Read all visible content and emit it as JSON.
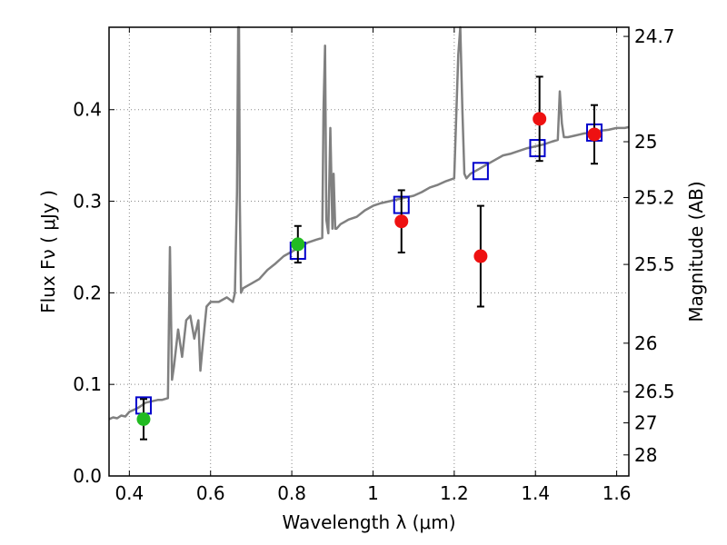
{
  "chart_data": {
    "type": "scatter",
    "xlabel": "Wavelength  λ (μm)",
    "ylabel": "Flux  Fν  ( μJy )",
    "y2label": "Magnitude (AB)",
    "xlim": [
      0.35,
      1.63
    ],
    "ylim": [
      0.0,
      0.49
    ],
    "x_ticks": [
      0.4,
      0.6,
      0.8,
      1.0,
      1.2,
      1.4,
      1.6
    ],
    "x_tick_labels": [
      "0.4",
      "0.6",
      "0.8",
      "1",
      "1.2",
      "1.4",
      "1.6"
    ],
    "y_ticks": [
      0.0,
      0.1,
      0.2,
      0.3,
      0.4
    ],
    "y_tick_labels": [
      "0.0",
      "0.1",
      "0.2",
      "0.3",
      "0.4"
    ],
    "y2_ticks": [
      {
        "label": "24.7",
        "flux": 0.48
      },
      {
        "label": "25",
        "flux": 0.365
      },
      {
        "label": "25.2",
        "flux": 0.304
      },
      {
        "label": "25.5",
        "flux": 0.231
      },
      {
        "label": "26",
        "flux": 0.145
      },
      {
        "label": "26.5",
        "flux": 0.092
      },
      {
        "label": "27",
        "flux": 0.058
      },
      {
        "label": "28",
        "flux": 0.023
      }
    ],
    "grid": true,
    "colors": {
      "model": "#808080",
      "green_points": "#22bb22",
      "red_points": "#ee1111",
      "model_photometry": "#0000cc",
      "error_bars": "#000000"
    },
    "series": [
      {
        "kind": "line",
        "x": [
          0.35,
          0.36,
          0.37,
          0.38,
          0.39,
          0.4,
          0.41,
          0.42,
          0.43,
          0.44,
          0.45,
          0.46,
          0.47,
          0.48,
          0.495,
          0.5,
          0.505,
          0.51,
          0.52,
          0.53,
          0.54,
          0.55,
          0.56,
          0.57,
          0.575,
          0.58,
          0.59,
          0.6,
          0.62,
          0.64,
          0.655,
          0.66,
          0.665,
          0.668,
          0.67,
          0.672,
          0.675,
          0.68,
          0.7,
          0.72,
          0.74,
          0.76,
          0.78,
          0.8,
          0.82,
          0.84,
          0.86,
          0.875,
          0.878,
          0.882,
          0.885,
          0.89,
          0.895,
          0.9,
          0.903,
          0.907,
          0.91,
          0.92,
          0.94,
          0.96,
          0.98,
          1.0,
          1.02,
          1.04,
          1.06,
          1.08,
          1.1,
          1.12,
          1.14,
          1.16,
          1.18,
          1.2,
          1.21,
          1.215,
          1.22,
          1.225,
          1.23,
          1.24,
          1.26,
          1.28,
          1.3,
          1.32,
          1.34,
          1.36,
          1.38,
          1.4,
          1.42,
          1.44,
          1.455,
          1.46,
          1.465,
          1.47,
          1.48,
          1.5,
          1.52,
          1.54,
          1.56,
          1.58,
          1.6,
          1.62,
          1.63
        ],
        "y": [
          0.062,
          0.064,
          0.063,
          0.066,
          0.065,
          0.07,
          0.072,
          0.074,
          0.077,
          0.08,
          0.081,
          0.082,
          0.083,
          0.083,
          0.085,
          0.25,
          0.105,
          0.12,
          0.16,
          0.13,
          0.17,
          0.175,
          0.15,
          0.17,
          0.115,
          0.14,
          0.185,
          0.19,
          0.19,
          0.195,
          0.19,
          0.2,
          0.31,
          0.49,
          0.49,
          0.3,
          0.2,
          0.205,
          0.21,
          0.215,
          0.225,
          0.232,
          0.24,
          0.245,
          0.25,
          0.255,
          0.258,
          0.26,
          0.4,
          0.47,
          0.28,
          0.265,
          0.38,
          0.27,
          0.33,
          0.27,
          0.27,
          0.275,
          0.28,
          0.283,
          0.29,
          0.295,
          0.298,
          0.3,
          0.302,
          0.304,
          0.306,
          0.31,
          0.315,
          0.318,
          0.322,
          0.325,
          0.46,
          0.49,
          0.4,
          0.33,
          0.325,
          0.33,
          0.335,
          0.34,
          0.345,
          0.35,
          0.352,
          0.355,
          0.358,
          0.36,
          0.362,
          0.365,
          0.367,
          0.42,
          0.385,
          0.37,
          0.37,
          0.372,
          0.374,
          0.375,
          0.377,
          0.378,
          0.38,
          0.38,
          0.381
        ]
      },
      {
        "kind": "squares",
        "x": [
          0.435,
          0.815,
          1.07,
          1.265,
          1.405,
          1.545
        ],
        "y": [
          0.077,
          0.246,
          0.296,
          0.333,
          0.358,
          0.375
        ]
      },
      {
        "kind": "points",
        "color_key": "green_points",
        "x": [
          0.435,
          0.815
        ],
        "y": [
          0.062,
          0.253
        ],
        "err": [
          0.022,
          0.02
        ]
      },
      {
        "kind": "points",
        "color_key": "red_points",
        "x": [
          1.07,
          1.265,
          1.41,
          1.545
        ],
        "y": [
          0.278,
          0.24,
          0.39,
          0.373
        ],
        "err": [
          0.034,
          0.055,
          0.046,
          0.032
        ]
      }
    ]
  }
}
